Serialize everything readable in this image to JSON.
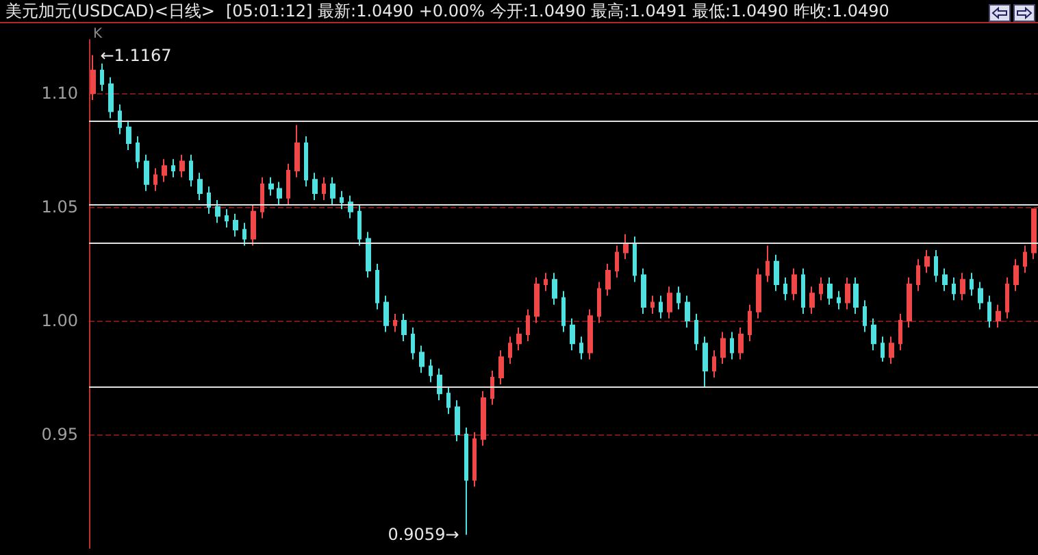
{
  "chart_data": {
    "type": "candlestick",
    "title": "美元加元(USDCAD)<日线>",
    "subtitle": "[05:01:12] 最新:1.0490 +0.00% 今开:1.0490 最高:1.0491 最低:1.0490 昨收:1.0490",
    "categories": [
      null,
      null,
      null,
      null,
      null,
      null,
      null,
      null,
      null,
      null,
      null,
      null,
      null,
      null,
      null,
      null,
      null,
      null,
      null,
      null,
      null,
      null,
      null,
      null,
      null,
      null,
      null,
      null,
      null,
      null,
      null,
      null,
      null,
      null,
      null,
      null,
      null,
      null,
      null,
      null,
      null,
      null,
      null,
      null,
      null,
      null,
      null,
      null,
      null,
      null,
      null,
      null,
      null,
      null,
      null,
      null,
      null,
      null,
      null,
      null,
      null,
      null,
      null,
      null,
      null,
      null,
      null,
      null,
      null,
      null,
      null,
      null,
      null,
      null,
      null,
      null,
      null,
      null,
      null,
      null,
      null,
      null,
      null,
      null,
      null,
      null,
      null,
      null,
      null,
      null,
      null,
      null,
      null,
      null,
      null,
      null,
      null,
      null,
      null,
      null,
      null,
      null,
      null,
      null,
      null,
      null,
      null
    ],
    "ohlc": [
      [
        1.1,
        1.1167,
        1.097,
        1.11
      ],
      [
        1.11,
        1.113,
        1.101,
        1.104
      ],
      [
        1.104,
        1.107,
        1.089,
        1.092
      ],
      [
        1.092,
        1.095,
        1.082,
        1.085
      ],
      [
        1.085,
        1.088,
        1.075,
        1.078
      ],
      [
        1.078,
        1.081,
        1.067,
        1.07
      ],
      [
        1.07,
        1.073,
        1.057,
        1.06
      ],
      [
        1.06,
        1.067,
        1.057,
        1.064
      ],
      [
        1.064,
        1.071,
        1.061,
        1.068
      ],
      [
        1.068,
        1.071,
        1.063,
        1.066
      ],
      [
        1.066,
        1.073,
        1.063,
        1.07
      ],
      [
        1.07,
        1.073,
        1.059,
        1.062
      ],
      [
        1.062,
        1.065,
        1.053,
        1.056
      ],
      [
        1.056,
        1.059,
        1.047,
        1.05
      ],
      [
        1.05,
        1.053,
        1.043,
        1.046
      ],
      [
        1.046,
        1.049,
        1.041,
        1.044
      ],
      [
        1.044,
        1.047,
        1.037,
        1.04
      ],
      [
        1.04,
        1.043,
        1.033,
        1.036
      ],
      [
        1.036,
        1.051,
        1.033,
        1.048
      ],
      [
        1.048,
        1.063,
        1.045,
        1.06
      ],
      [
        1.06,
        1.063,
        1.055,
        1.058
      ],
      [
        1.058,
        1.061,
        1.051,
        1.054
      ],
      [
        1.054,
        1.069,
        1.051,
        1.066
      ],
      [
        1.066,
        1.086,
        1.063,
        1.078
      ],
      [
        1.078,
        1.081,
        1.059,
        1.062
      ],
      [
        1.062,
        1.065,
        1.053,
        1.056
      ],
      [
        1.056,
        1.063,
        1.053,
        1.06
      ],
      [
        1.06,
        1.063,
        1.051,
        1.054
      ],
      [
        1.054,
        1.057,
        1.049,
        1.052
      ],
      [
        1.052,
        1.055,
        1.045,
        1.048
      ],
      [
        1.048,
        1.051,
        1.033,
        1.036
      ],
      [
        1.036,
        1.039,
        1.019,
        1.022
      ],
      [
        1.022,
        1.025,
        1.005,
        1.008
      ],
      [
        1.008,
        1.011,
        0.995,
        0.998
      ],
      [
        0.998,
        1.003,
        0.995,
        1.0
      ],
      [
        1.0,
        1.003,
        0.991,
        0.994
      ],
      [
        0.994,
        0.997,
        0.983,
        0.986
      ],
      [
        0.986,
        0.989,
        0.977,
        0.98
      ],
      [
        0.98,
        0.983,
        0.973,
        0.976
      ],
      [
        0.976,
        0.979,
        0.965,
        0.968
      ],
      [
        0.968,
        0.971,
        0.959,
        0.962
      ],
      [
        0.962,
        0.965,
        0.947,
        0.95
      ],
      [
        0.95,
        0.953,
        0.9059,
        0.93
      ],
      [
        0.93,
        0.951,
        0.927,
        0.948
      ],
      [
        0.948,
        0.969,
        0.945,
        0.966
      ],
      [
        0.966,
        0.978,
        0.963,
        0.975
      ],
      [
        0.975,
        0.987,
        0.972,
        0.984
      ],
      [
        0.984,
        0.993,
        0.981,
        0.99
      ],
      [
        0.99,
        0.997,
        0.987,
        0.994
      ],
      [
        0.994,
        1.005,
        0.991,
        1.002
      ],
      [
        1.002,
        1.019,
        0.999,
        1.016
      ],
      [
        1.016,
        1.021,
        1.013,
        1.018
      ],
      [
        1.018,
        1.021,
        1.007,
        1.01
      ],
      [
        1.01,
        1.013,
        0.995,
        0.998
      ],
      [
        0.998,
        1.001,
        0.987,
        0.99
      ],
      [
        0.99,
        0.993,
        0.983,
        0.986
      ],
      [
        0.986,
        1.005,
        0.983,
        1.002
      ],
      [
        1.002,
        1.017,
        0.999,
        1.014
      ],
      [
        1.014,
        1.025,
        1.011,
        1.022
      ],
      [
        1.022,
        1.033,
        1.019,
        1.03
      ],
      [
        1.03,
        1.038,
        1.027,
        1.034
      ],
      [
        1.034,
        1.037,
        1.017,
        1.02
      ],
      [
        1.02,
        1.023,
        1.003,
        1.006
      ],
      [
        1.006,
        1.011,
        1.003,
        1.008
      ],
      [
        1.008,
        1.011,
        1.001,
        1.004
      ],
      [
        1.004,
        1.015,
        1.001,
        1.012
      ],
      [
        1.012,
        1.015,
        1.005,
        1.008
      ],
      [
        1.008,
        1.011,
        0.997,
        1.0
      ],
      [
        1.0,
        1.003,
        0.987,
        0.99
      ],
      [
        0.99,
        0.993,
        0.971,
        0.978
      ],
      [
        0.978,
        0.987,
        0.975,
        0.984
      ],
      [
        0.984,
        0.995,
        0.981,
        0.992
      ],
      [
        0.992,
        0.995,
        0.983,
        0.986
      ],
      [
        0.986,
        0.997,
        0.983,
        0.994
      ],
      [
        0.994,
        1.007,
        0.991,
        1.004
      ],
      [
        1.004,
        1.023,
        1.001,
        1.02
      ],
      [
        1.02,
        1.033,
        1.017,
        1.026
      ],
      [
        1.026,
        1.029,
        1.013,
        1.016
      ],
      [
        1.016,
        1.019,
        1.009,
        1.012
      ],
      [
        1.012,
        1.023,
        1.009,
        1.02
      ],
      [
        1.02,
        1.023,
        1.003,
        1.006
      ],
      [
        1.006,
        1.015,
        1.003,
        1.012
      ],
      [
        1.012,
        1.019,
        1.009,
        1.016
      ],
      [
        1.016,
        1.019,
        1.007,
        1.01
      ],
      [
        1.01,
        1.013,
        1.005,
        1.008
      ],
      [
        1.008,
        1.019,
        1.005,
        1.016
      ],
      [
        1.016,
        1.019,
        1.003,
        1.006
      ],
      [
        1.006,
        1.009,
        0.995,
        0.998
      ],
      [
        0.998,
        1.001,
        0.987,
        0.99
      ],
      [
        0.99,
        0.993,
        0.982,
        0.984
      ],
      [
        0.984,
        0.993,
        0.981,
        0.99
      ],
      [
        0.99,
        1.003,
        0.987,
        1.0
      ],
      [
        1.0,
        1.019,
        0.997,
        1.016
      ],
      [
        1.016,
        1.027,
        1.013,
        1.024
      ],
      [
        1.024,
        1.031,
        1.021,
        1.028
      ],
      [
        1.028,
        1.031,
        1.017,
        1.02
      ],
      [
        1.02,
        1.023,
        1.013,
        1.016
      ],
      [
        1.016,
        1.019,
        1.009,
        1.012
      ],
      [
        1.012,
        1.021,
        1.009,
        1.018
      ],
      [
        1.018,
        1.021,
        1.011,
        1.014
      ],
      [
        1.014,
        1.017,
        1.005,
        1.008
      ],
      [
        1.008,
        1.011,
        0.997,
        1.0
      ],
      [
        1.0,
        1.007,
        0.997,
        1.004
      ],
      [
        1.004,
        1.019,
        1.001,
        1.016
      ],
      [
        1.016,
        1.027,
        1.013,
        1.024
      ],
      [
        1.024,
        1.033,
        1.021,
        1.03
      ],
      [
        1.03,
        1.049,
        1.027,
        1.049
      ]
    ],
    "colors": [
      "#f04848",
      "#50e0e0",
      "#50e0e0",
      "#50e0e0",
      "#50e0e0",
      "#50e0e0",
      "#50e0e0",
      "#f04848",
      "#f04848",
      "#50e0e0",
      "#f04848",
      "#50e0e0",
      "#50e0e0",
      "#50e0e0",
      "#50e0e0",
      "#50e0e0",
      "#50e0e0",
      "#50e0e0",
      "#f04848",
      "#f04848",
      "#50e0e0",
      "#50e0e0",
      "#f04848",
      "#f04848",
      "#50e0e0",
      "#50e0e0",
      "#f04848",
      "#50e0e0",
      "#50e0e0",
      "#50e0e0",
      "#50e0e0",
      "#50e0e0",
      "#50e0e0",
      "#50e0e0",
      "#f04848",
      "#50e0e0",
      "#50e0e0",
      "#50e0e0",
      "#50e0e0",
      "#50e0e0",
      "#50e0e0",
      "#50e0e0",
      "#50e0e0",
      "#f04848",
      "#f04848",
      "#f04848",
      "#f04848",
      "#f04848",
      "#f04848",
      "#f04848",
      "#f04848",
      "#f04848",
      "#50e0e0",
      "#50e0e0",
      "#50e0e0",
      "#50e0e0",
      "#f04848",
      "#f04848",
      "#f04848",
      "#f04848",
      "#f04848",
      "#50e0e0",
      "#50e0e0",
      "#f04848",
      "#50e0e0",
      "#f04848",
      "#50e0e0",
      "#50e0e0",
      "#50e0e0",
      "#50e0e0",
      "#f04848",
      "#f04848",
      "#50e0e0",
      "#f04848",
      "#f04848",
      "#f04848",
      "#f04848",
      "#50e0e0",
      "#50e0e0",
      "#f04848",
      "#50e0e0",
      "#f04848",
      "#f04848",
      "#50e0e0",
      "#50e0e0",
      "#f04848",
      "#50e0e0",
      "#50e0e0",
      "#50e0e0",
      "#50e0e0",
      "#f04848",
      "#f04848",
      "#f04848",
      "#f04848",
      "#f04848",
      "#50e0e0",
      "#50e0e0",
      "#50e0e0",
      "#f04848",
      "#50e0e0",
      "#50e0e0",
      "#50e0e0",
      "#f04848",
      "#f04848",
      "#f04848",
      "#f04848",
      "#f04848"
    ],
    "ylim": [
      0.9,
      1.1235
    ],
    "yticks": [
      {
        "value": 0.95,
        "label": "0.95"
      },
      {
        "value": 1.0,
        "label": "1.00"
      },
      {
        "value": 1.05,
        "label": "1.05"
      },
      {
        "value": 1.1,
        "label": "1.10"
      }
    ],
    "grid": "y",
    "ref_lines": [
      {
        "axis": "y",
        "value": 1.088,
        "color": "#e0e0e0"
      },
      {
        "axis": "y",
        "value": 1.051,
        "color": "#e0e0e0"
      },
      {
        "axis": "y",
        "value": 1.034,
        "color": "#e0e0e0"
      },
      {
        "axis": "y",
        "value": 0.971,
        "color": "#e0e0e0"
      }
    ],
    "annotations": [
      "K",
      "←1.1167",
      "0.9059→"
    ]
  }
}
